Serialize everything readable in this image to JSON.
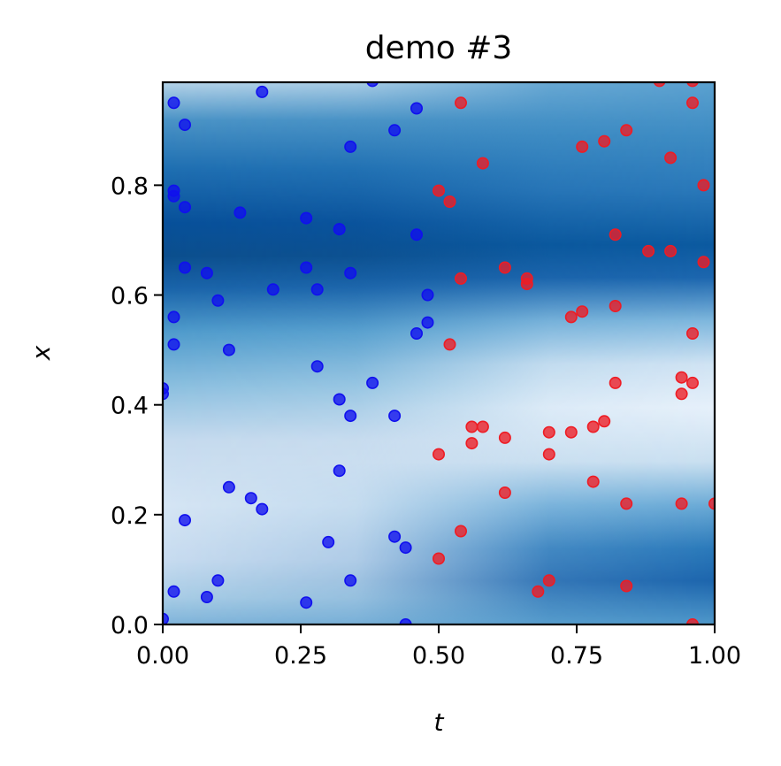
{
  "chart_data": {
    "type": "scatter",
    "title": "demo #3",
    "xlabel": "t",
    "ylabel": "x",
    "xlim": [
      0,
      1
    ],
    "ylim": [
      0,
      1
    ],
    "x_ticks": [
      "0.00",
      "0.25",
      "0.50",
      "0.75",
      "1.00"
    ],
    "y_ticks": [
      "0.0",
      "0.2",
      "0.4",
      "0.6",
      "0.8"
    ],
    "grid": false,
    "background": {
      "type": "heatmap",
      "colormap": "Blues",
      "dark_band_x_range": [
        0.62,
        0.82
      ],
      "light_band_x_range": [
        0.25,
        0.5
      ]
    },
    "series": [
      {
        "color": "#1010ee",
        "points": [
          [
            0.02,
            0.95
          ],
          [
            0.18,
            0.97
          ],
          [
            0.38,
            0.99
          ],
          [
            0.46,
            0.94
          ],
          [
            0.04,
            0.91
          ],
          [
            0.42,
            0.9
          ],
          [
            0.34,
            0.87
          ],
          [
            0.02,
            0.79
          ],
          [
            0.02,
            0.78
          ],
          [
            0.04,
            0.76
          ],
          [
            0.14,
            0.75
          ],
          [
            0.26,
            0.74
          ],
          [
            0.32,
            0.72
          ],
          [
            0.46,
            0.71
          ],
          [
            0.04,
            0.65
          ],
          [
            0.08,
            0.64
          ],
          [
            0.26,
            0.65
          ],
          [
            0.34,
            0.64
          ],
          [
            0.2,
            0.61
          ],
          [
            0.28,
            0.61
          ],
          [
            0.48,
            0.6
          ],
          [
            0.1,
            0.59
          ],
          [
            0.02,
            0.56
          ],
          [
            0.48,
            0.55
          ],
          [
            0.46,
            0.53
          ],
          [
            0.02,
            0.51
          ],
          [
            0.12,
            0.5
          ],
          [
            0.28,
            0.47
          ],
          [
            0.38,
            0.44
          ],
          [
            0.0,
            0.43
          ],
          [
            0.0,
            0.42
          ],
          [
            0.32,
            0.41
          ],
          [
            0.34,
            0.38
          ],
          [
            0.42,
            0.38
          ],
          [
            0.32,
            0.28
          ],
          [
            0.12,
            0.25
          ],
          [
            0.16,
            0.23
          ],
          [
            0.18,
            0.21
          ],
          [
            0.04,
            0.19
          ],
          [
            0.42,
            0.16
          ],
          [
            0.3,
            0.15
          ],
          [
            0.44,
            0.14
          ],
          [
            0.1,
            0.08
          ],
          [
            0.34,
            0.08
          ],
          [
            0.02,
            0.06
          ],
          [
            0.08,
            0.05
          ],
          [
            0.26,
            0.04
          ],
          [
            0.0,
            0.01
          ],
          [
            0.44,
            0.0
          ]
        ]
      },
      {
        "color": "#ee1c24",
        "points": [
          [
            0.9,
            0.99
          ],
          [
            0.96,
            0.99
          ],
          [
            0.54,
            0.95
          ],
          [
            0.96,
            0.95
          ],
          [
            0.84,
            0.9
          ],
          [
            0.8,
            0.88
          ],
          [
            0.76,
            0.87
          ],
          [
            0.92,
            0.85
          ],
          [
            0.58,
            0.84
          ],
          [
            0.98,
            0.8
          ],
          [
            0.5,
            0.79
          ],
          [
            0.52,
            0.77
          ],
          [
            0.82,
            0.71
          ],
          [
            0.88,
            0.68
          ],
          [
            0.92,
            0.68
          ],
          [
            0.98,
            0.66
          ],
          [
            0.62,
            0.65
          ],
          [
            0.54,
            0.63
          ],
          [
            0.66,
            0.63
          ],
          [
            0.66,
            0.62
          ],
          [
            0.82,
            0.58
          ],
          [
            0.76,
            0.57
          ],
          [
            0.74,
            0.56
          ],
          [
            0.96,
            0.53
          ],
          [
            0.52,
            0.51
          ],
          [
            0.94,
            0.45
          ],
          [
            0.82,
            0.44
          ],
          [
            0.96,
            0.44
          ],
          [
            0.94,
            0.42
          ],
          [
            0.8,
            0.37
          ],
          [
            0.56,
            0.36
          ],
          [
            0.58,
            0.36
          ],
          [
            0.78,
            0.36
          ],
          [
            0.7,
            0.35
          ],
          [
            0.74,
            0.35
          ],
          [
            0.62,
            0.34
          ],
          [
            0.56,
            0.33
          ],
          [
            0.5,
            0.31
          ],
          [
            0.7,
            0.31
          ],
          [
            0.78,
            0.26
          ],
          [
            0.62,
            0.24
          ],
          [
            0.84,
            0.22
          ],
          [
            0.94,
            0.22
          ],
          [
            1.0,
            0.22
          ],
          [
            0.54,
            0.17
          ],
          [
            0.5,
            0.12
          ],
          [
            0.7,
            0.08
          ],
          [
            0.84,
            0.07
          ],
          [
            0.68,
            0.06
          ],
          [
            0.96,
            0.0
          ]
        ]
      }
    ]
  }
}
